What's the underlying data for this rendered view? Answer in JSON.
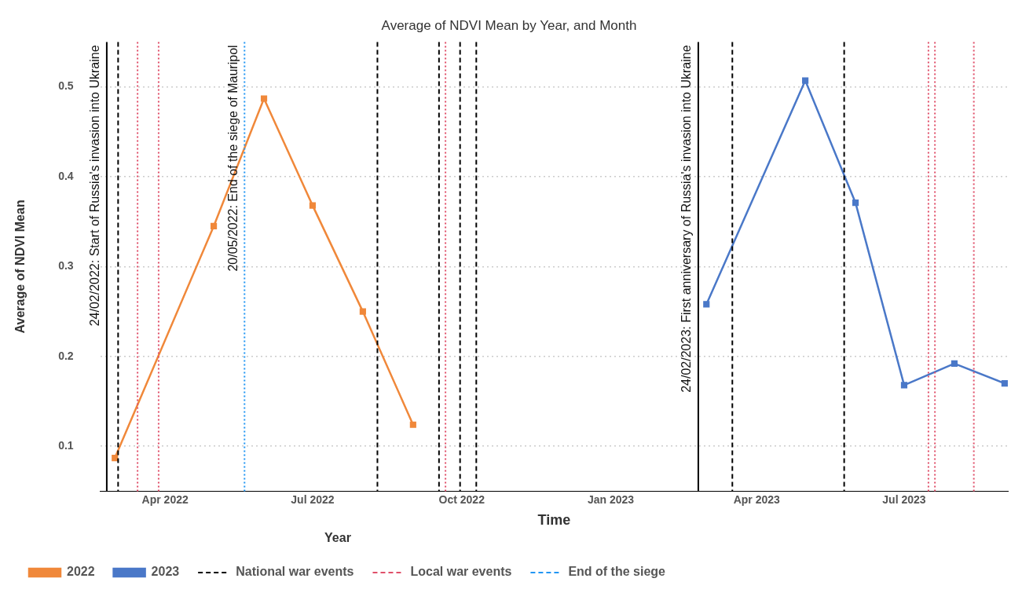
{
  "chart_data": {
    "type": "line",
    "title": "Average of NDVI Mean by Year, and Month",
    "xlabel": "Time",
    "ylabel": "Average of NDVI Mean",
    "legend_title": "Year",
    "legend": "bottom",
    "grid": "y",
    "marker": "square",
    "xlim": [
      "2022-02-20",
      "2023-09-03"
    ],
    "xticks": [
      {
        "value": "2022-04-01",
        "label": "Apr 2022"
      },
      {
        "value": "2022-07-01",
        "label": "Jul 2022"
      },
      {
        "value": "2022-10-01",
        "label": "Oct 2022"
      },
      {
        "value": "2023-01-01",
        "label": "Jan 2023"
      },
      {
        "value": "2023-04-01",
        "label": "Apr 2023"
      },
      {
        "value": "2023-07-01",
        "label": "Jul 2023"
      }
    ],
    "ylim": [
      0.05,
      0.55
    ],
    "yticks": [
      0.1,
      0.2,
      0.3,
      0.4,
      0.5
    ],
    "series": [
      {
        "name": "2022",
        "color": "#f0883a",
        "x": [
          "2022-03-01",
          "2022-05-01",
          "2022-06-01",
          "2022-07-01",
          "2022-08-01",
          "2022-09-01"
        ],
        "values": [
          0.087,
          0.345,
          0.487,
          0.368,
          0.25,
          0.124
        ]
      },
      {
        "name": "2023",
        "color": "#4a78c8",
        "x": [
          "2023-03-01",
          "2023-05-01",
          "2023-06-01",
          "2023-07-01",
          "2023-08-01",
          "2023-09-01"
        ],
        "values": [
          0.258,
          0.507,
          0.371,
          0.168,
          0.192,
          0.17
        ]
      },
      {
        "name": "National war events",
        "color": "#000000",
        "line_style": "dashed"
      },
      {
        "name": "Local war events",
        "color": "#e0506a",
        "line_style": "dashed"
      },
      {
        "name": "End of the siege",
        "color": "#2196f3",
        "line_style": "dashed"
      }
    ],
    "ref_lines": [
      {
        "axis": "x",
        "value": "2022-02-24",
        "label": "24/02/2022: Start of Russia's invasion into Ukraine",
        "color": "#000000",
        "line_style": "solid"
      },
      {
        "axis": "x",
        "value": "2022-03-03",
        "color": "#000000",
        "line_style": "dashed"
      },
      {
        "axis": "x",
        "value": "2022-03-15",
        "color": "#e0506a",
        "line_style": "dotted"
      },
      {
        "axis": "x",
        "value": "2022-03-28",
        "color": "#e0506a",
        "line_style": "dotted"
      },
      {
        "axis": "x",
        "value": "2022-05-20",
        "label": "20/05/2022: End of the siege of Mauripol",
        "color": "#2196f3",
        "line_style": "dotted"
      },
      {
        "axis": "x",
        "value": "2022-08-10",
        "color": "#000000",
        "line_style": "dashed"
      },
      {
        "axis": "x",
        "value": "2022-09-17",
        "color": "#000000",
        "line_style": "dashed"
      },
      {
        "axis": "x",
        "value": "2022-09-21",
        "color": "#e0506a",
        "line_style": "dotted"
      },
      {
        "axis": "x",
        "value": "2022-09-30",
        "color": "#000000",
        "line_style": "dashed"
      },
      {
        "axis": "x",
        "value": "2022-10-10",
        "color": "#000000",
        "line_style": "dashed"
      },
      {
        "axis": "x",
        "value": "2023-02-24",
        "label": "24/02/2023: First anniversary of Russia's invasion into Ukraine",
        "color": "#000000",
        "line_style": "solid"
      },
      {
        "axis": "x",
        "value": "2023-03-17",
        "color": "#000000",
        "line_style": "dashed"
      },
      {
        "axis": "x",
        "value": "2023-05-25",
        "color": "#000000",
        "line_style": "dashed"
      },
      {
        "axis": "x",
        "value": "2023-07-16",
        "color": "#e0506a",
        "line_style": "dotted"
      },
      {
        "axis": "x",
        "value": "2023-07-20",
        "color": "#e0506a",
        "line_style": "dotted"
      },
      {
        "axis": "x",
        "value": "2023-08-13",
        "color": "#e0506a",
        "line_style": "dotted"
      }
    ]
  }
}
